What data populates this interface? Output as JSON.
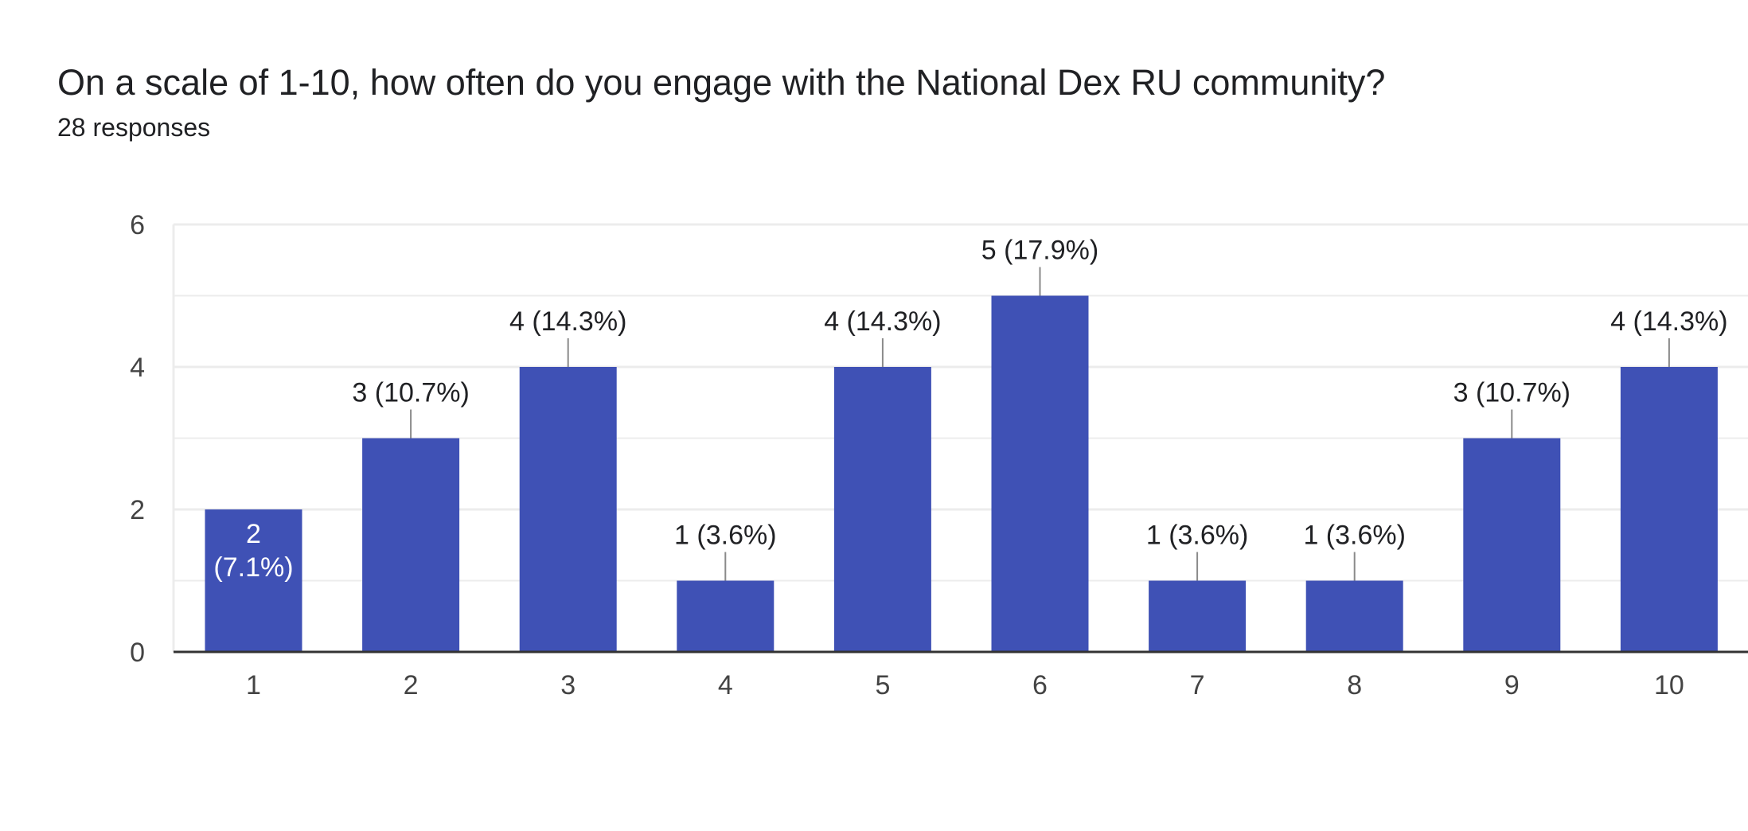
{
  "header": {
    "title": "On a scale of 1-10, how often do you engage with the National Dex RU community?",
    "subtitle": "28 responses"
  },
  "colors": {
    "bar": "#3f51b5",
    "grid": "#ececec",
    "baseline": "#333333",
    "leader": "#8a8a8a"
  },
  "chart_data": {
    "type": "bar",
    "categories": [
      "1",
      "2",
      "3",
      "4",
      "5",
      "6",
      "7",
      "8",
      "9",
      "10"
    ],
    "values": [
      2,
      3,
      4,
      1,
      4,
      5,
      1,
      1,
      3,
      4
    ],
    "data_labels": [
      "2 (7.1%)",
      "3 (10.7%)",
      "4 (14.3%)",
      "1 (3.6%)",
      "4 (14.3%)",
      "5 (17.9%)",
      "1 (3.6%)",
      "1 (3.6%)",
      "3 (10.7%)",
      "4 (14.3%)"
    ],
    "title": "On a scale of 1-10, how often do you engage with the National Dex RU community?",
    "subtitle": "28 responses",
    "xlabel": "",
    "ylabel": "",
    "ylim": [
      0,
      6
    ],
    "yticks": [
      0,
      2,
      4,
      6
    ],
    "grid": true,
    "legend": "none"
  }
}
